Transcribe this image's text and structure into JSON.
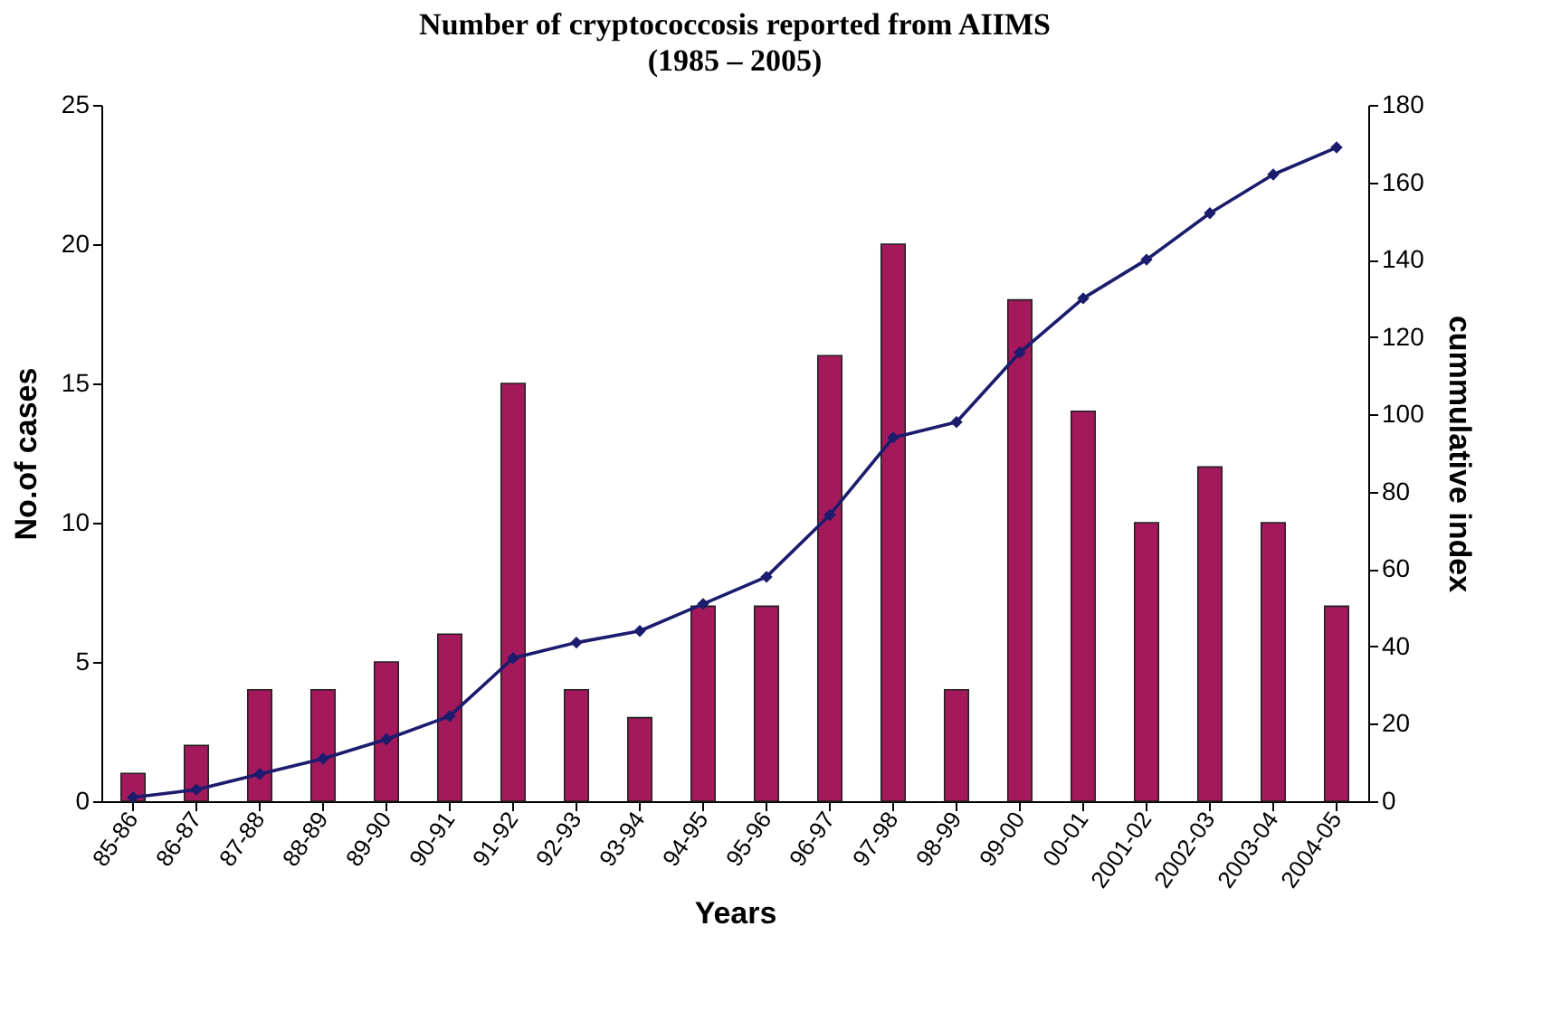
{
  "chart_data": {
    "type": "bar",
    "title": "Number of cryptococcosis reported from AIIMS",
    "subtitle": "(1985 – 2005)",
    "xlabel": "Years",
    "ylabel": "No.of cases",
    "y2label": "cummulative index",
    "categories": [
      "85-86",
      "86-87",
      "87-88",
      "88-89",
      "89-90",
      "90-91",
      "91-92",
      "92-93",
      "93-94",
      "94-95",
      "95-96",
      "96-97",
      "97-98",
      "98-99",
      "99-00",
      "00-01",
      "2001-02",
      "2002-03",
      "2003-04",
      "2004-05"
    ],
    "series": [
      {
        "color": "#a3195b",
        "values": [
          1,
          2,
          4,
          4,
          5,
          6,
          15,
          4,
          3,
          7,
          7,
          16,
          20,
          4,
          18,
          14,
          10,
          12,
          10,
          7
        ]
      },
      {
        "type": "line",
        "axis": "y2",
        "color": "#1c1c6e",
        "marker": "diamond",
        "values": [
          1,
          3,
          7,
          11,
          16,
          22,
          37,
          41,
          44,
          51,
          58,
          74,
          94,
          98,
          116,
          130,
          140,
          152,
          162,
          169
        ]
      }
    ],
    "ylim": [
      0,
      25
    ],
    "yticks": [
      0,
      5,
      10,
      15,
      20,
      25
    ],
    "y2lim": [
      0,
      180
    ],
    "y2ticks": [
      0,
      20,
      40,
      60,
      80,
      100,
      120,
      140,
      160,
      180
    ],
    "grid": false
  }
}
